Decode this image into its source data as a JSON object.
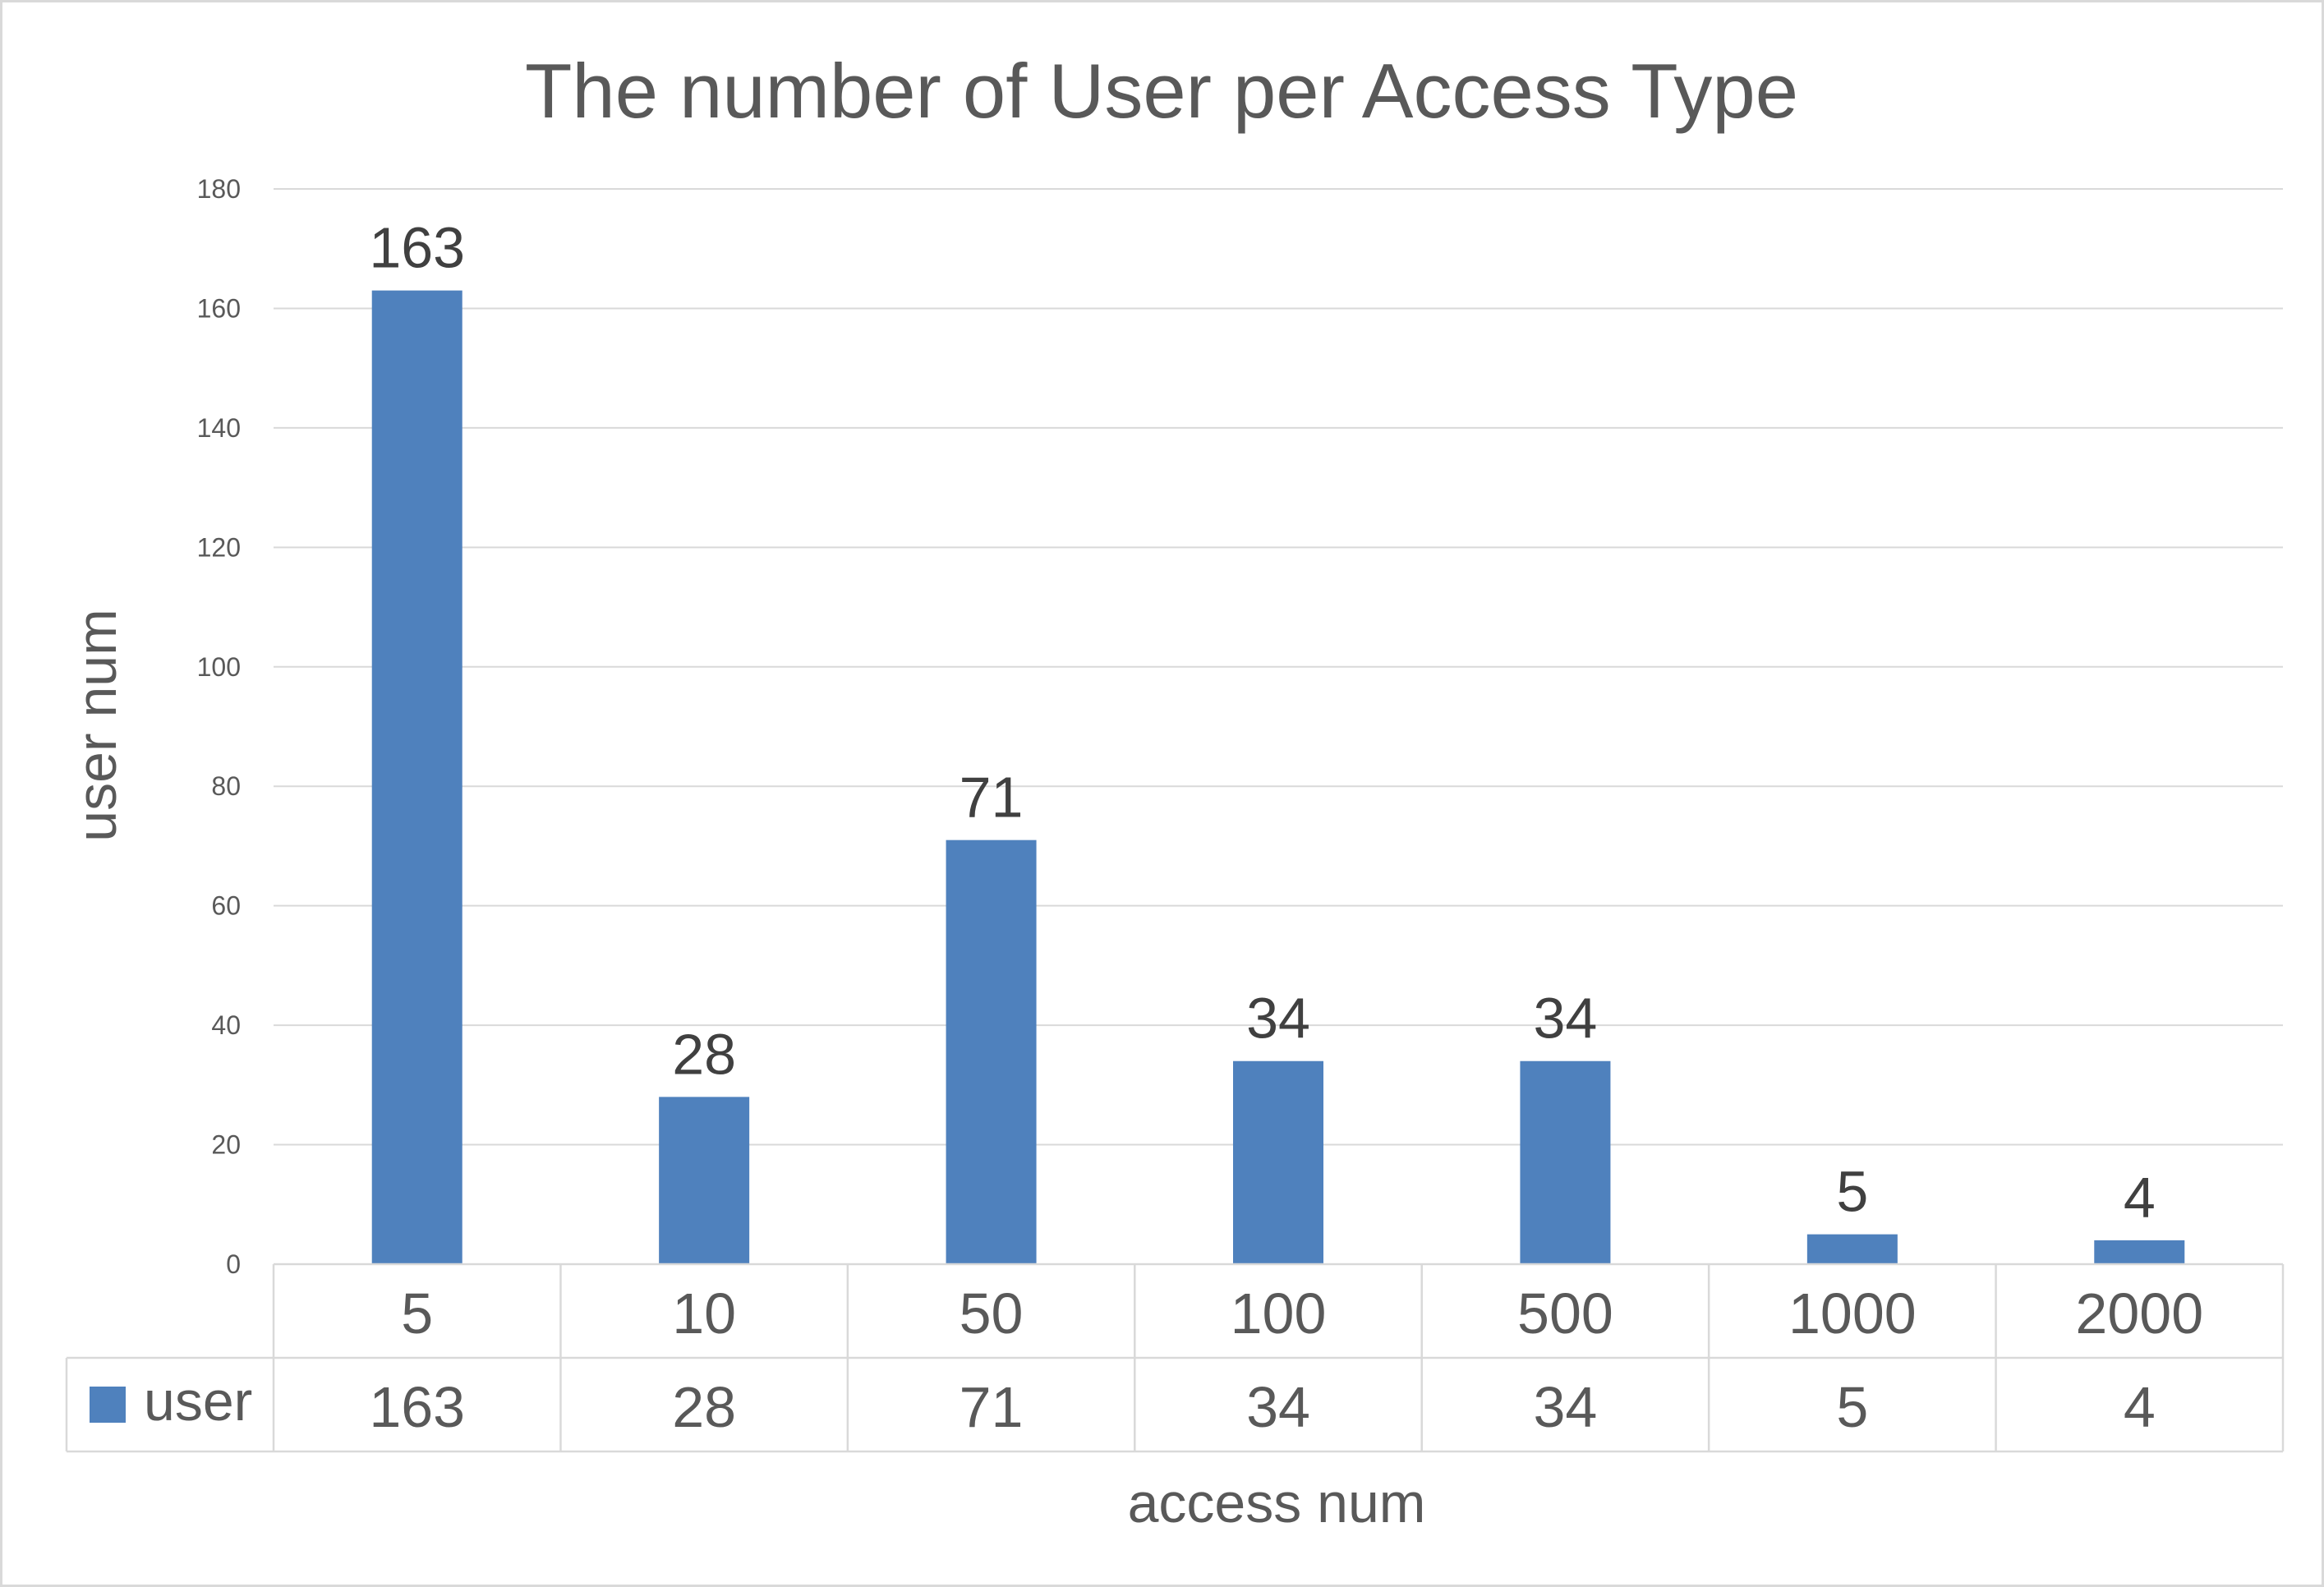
{
  "chart_data": {
    "type": "bar",
    "title": "The number of User per Access Type",
    "xlabel": "access num",
    "ylabel": "user num",
    "categories": [
      "5",
      "10",
      "50",
      "100",
      "500",
      "1000",
      "2000"
    ],
    "series": [
      {
        "name": "user",
        "values": [
          163,
          28,
          71,
          34,
          34,
          5,
          4
        ],
        "color": "#4f81bd"
      }
    ],
    "ylim": [
      0,
      180
    ],
    "yticks": [
      0,
      20,
      40,
      60,
      80,
      100,
      120,
      140,
      160,
      180
    ],
    "grid": true,
    "data_labels": true,
    "data_table": true
  }
}
